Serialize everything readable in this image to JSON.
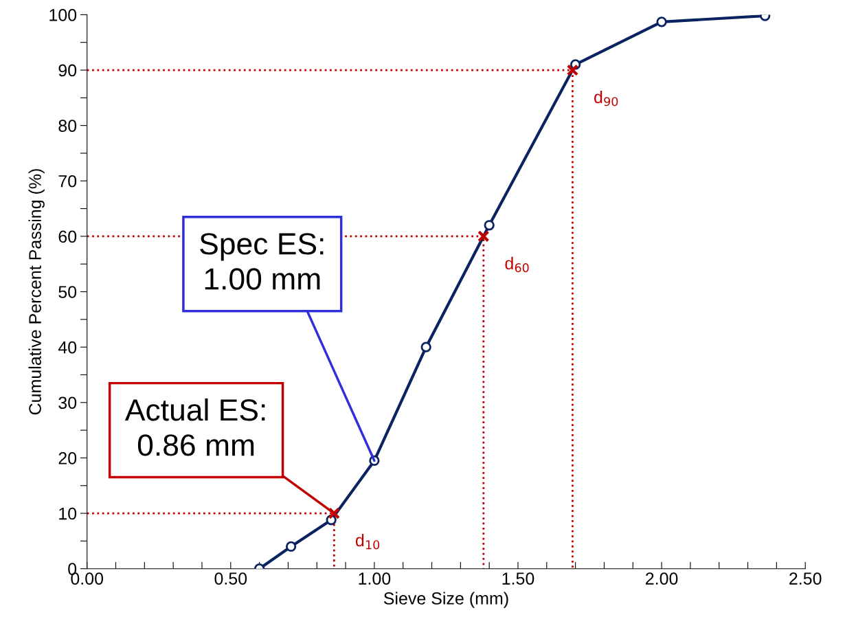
{
  "chart_data": {
    "type": "line",
    "xlabel": "Sieve Size (mm)",
    "ylabel": "Cumulative Percent Passing (%)",
    "series": [
      {
        "color": "#0b2461",
        "marker": "circle",
        "line_style": "solid",
        "x": [
          0.6,
          0.71,
          0.85,
          1.0,
          1.18,
          1.4,
          1.7,
          2.0,
          2.36
        ],
        "values": [
          0,
          4,
          8.8,
          19.5,
          40,
          62,
          91,
          98.7,
          99.8
        ]
      },
      {
        "color": "#c00000",
        "marker": "none",
        "line_style": "dotted",
        "x": [
          0,
          0.86,
          0.86
        ],
        "values": [
          10,
          10,
          0
        ]
      },
      {
        "color": "#c00000",
        "marker": "none",
        "line_style": "dotted",
        "x": [
          0,
          1.38,
          1.38
        ],
        "values": [
          60,
          60,
          0
        ]
      },
      {
        "color": "#c00000",
        "marker": "none",
        "line_style": "dotted",
        "x": [
          0,
          1.69,
          1.69
        ],
        "values": [
          90,
          90,
          0
        ]
      },
      {
        "type": "scatter",
        "color": "#c00000",
        "marker": "cross",
        "x": [
          0.86,
          1.38,
          1.69
        ],
        "values": [
          10,
          60,
          90
        ]
      }
    ],
    "annotations": [
      {
        "text": "d$_{10}$",
        "x": 0.86,
        "y": 10
      },
      {
        "text": "d$_{60}$",
        "x": 1.38,
        "y": 60
      },
      {
        "text": "d$_{90}$",
        "x": 1.69,
        "y": 90
      },
      {
        "text": "Spec ES:\n1.00 mm",
        "x": 1.0,
        "y": 19.5
      },
      {
        "text": "Actual ES:\n0.86 mm",
        "x": 0.86,
        "y": 10
      }
    ],
    "xlim": [
      0,
      2.5
    ],
    "ylim": [
      0,
      100
    ],
    "xticks": [
      {
        "value": 0,
        "label": "0.00"
      },
      {
        "value": 0.1,
        "label": null
      },
      {
        "value": 0.2,
        "label": null
      },
      {
        "value": 0.3,
        "label": null
      },
      {
        "value": 0.4,
        "label": null
      },
      {
        "value": 0.5,
        "label": "0.50"
      },
      {
        "value": 0.6,
        "label": null
      },
      {
        "value": 0.7,
        "label": null
      },
      {
        "value": 0.8,
        "label": null
      },
      {
        "value": 0.9,
        "label": null
      },
      {
        "value": 1.0,
        "label": "1.00"
      },
      {
        "value": 1.1,
        "label": null
      },
      {
        "value": 1.2,
        "label": null
      },
      {
        "value": 1.3,
        "label": null
      },
      {
        "value": 1.4,
        "label": null
      },
      {
        "value": 1.5,
        "label": "1.50"
      },
      {
        "value": 1.6,
        "label": null
      },
      {
        "value": 1.7,
        "label": null
      },
      {
        "value": 1.8,
        "label": null
      },
      {
        "value": 1.9,
        "label": null
      },
      {
        "value": 2.0,
        "label": "2.00"
      },
      {
        "value": 2.1,
        "label": null
      },
      {
        "value": 2.2,
        "label": null
      },
      {
        "value": 2.3,
        "label": null
      },
      {
        "value": 2.4,
        "label": null
      },
      {
        "value": 2.5,
        "label": "2.50"
      }
    ],
    "yticks": [
      0,
      {
        "value": 5,
        "label": null
      },
      10,
      {
        "value": 15,
        "label": null
      },
      20,
      {
        "value": 25,
        "label": null
      },
      30,
      {
        "value": 35,
        "label": null
      },
      40,
      {
        "value": 45,
        "label": null
      },
      50,
      {
        "value": 55,
        "label": null
      },
      60,
      {
        "value": 65,
        "label": null
      },
      70,
      {
        "value": 75,
        "label": null
      },
      80,
      {
        "value": 85,
        "label": null
      },
      90,
      {
        "value": 95,
        "label": null
      },
      100
    ],
    "grid": false,
    "legend": false
  }
}
